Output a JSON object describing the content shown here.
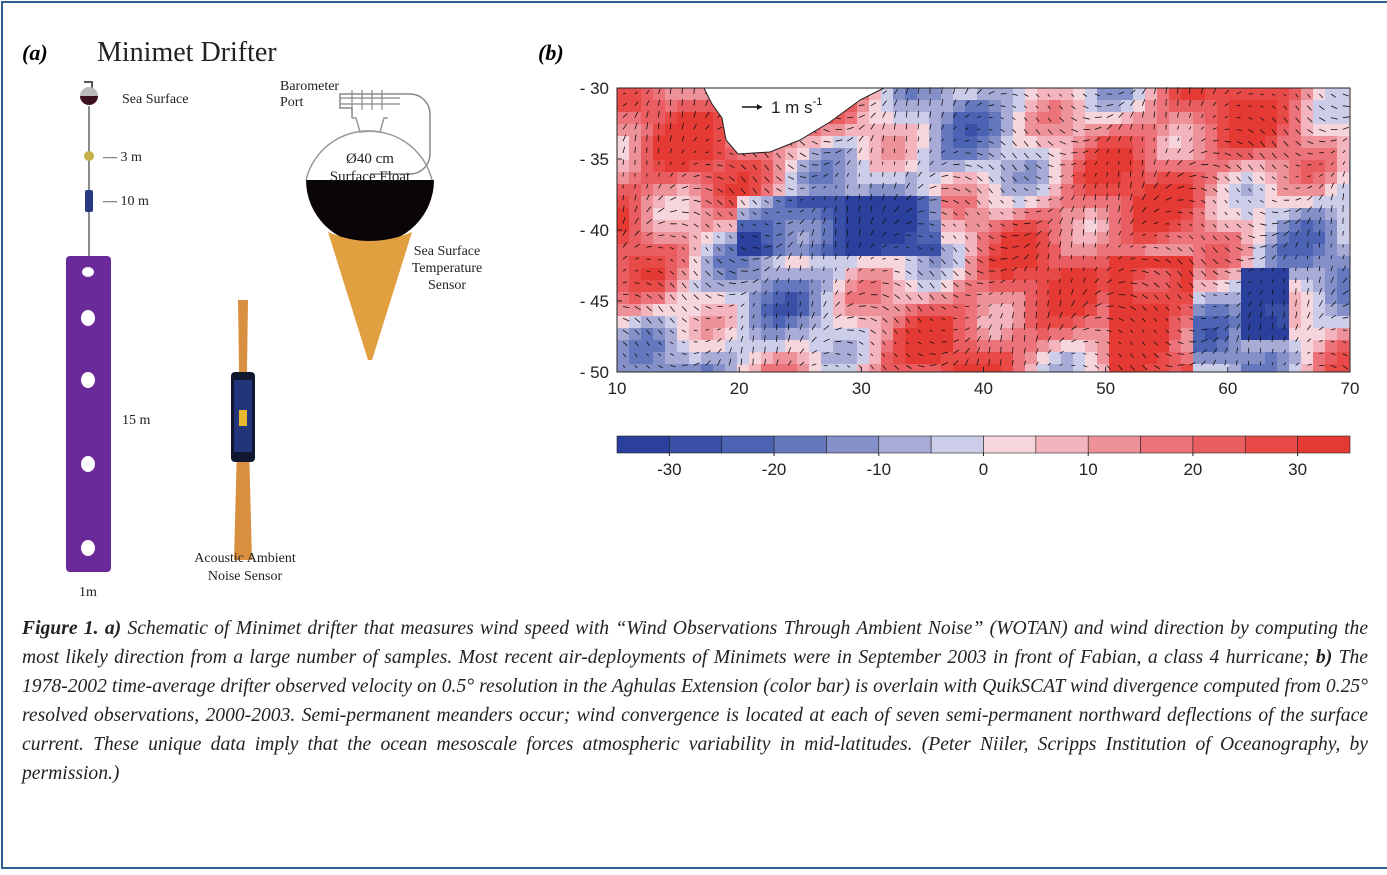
{
  "panel_a": {
    "label": "(a)",
    "title": "Minimet Drifter",
    "sea_surface": "Sea Surface",
    "depth_3": "— 3 m",
    "depth_10": "— 10 m",
    "length_15": "15 m",
    "width_1": "1m",
    "barometer": [
      "Barometer",
      "Port"
    ],
    "float": [
      "Ø40 cm",
      "Surface Float"
    ],
    "sst_sensor": [
      "Sea Surface",
      "Temperature",
      "Sensor"
    ],
    "noise_sensor": [
      "Acoustic Ambient",
      "Noise Sensor"
    ]
  },
  "panel_b": {
    "label": "(b)",
    "arrow_scale": {
      "text": "1 m s",
      "sup": "-1"
    },
    "xlim": [
      10,
      70
    ],
    "xticks": [
      10,
      20,
      30,
      40,
      50,
      60,
      70
    ],
    "ylim": [
      -50,
      -30
    ],
    "yticks": [
      {
        "value": -30,
        "label": "- 30"
      },
      {
        "value": -35,
        "label": "- 35"
      },
      {
        "value": -40,
        "label": "- 40"
      },
      {
        "value": -45,
        "label": "- 45"
      },
      {
        "value": -50,
        "label": "- 50"
      }
    ],
    "colorbar": {
      "lim": [
        -35,
        35
      ],
      "ticks": [
        -30,
        -20,
        -10,
        0,
        10,
        20,
        30
      ],
      "colors": [
        "#2b3f9c",
        "#3a4fa6",
        "#4c62b2",
        "#6577bd",
        "#8590c8",
        "#a7abd6",
        "#cccde9",
        "#f6d6dc",
        "#f3b4bd",
        "#ee9299",
        "#eb7379",
        "#e95c5f",
        "#e84a48",
        "#e43a33"
      ]
    }
  },
  "caption": {
    "figure": "Figure 1.",
    "a_label": "a)",
    "a_text": "Schematic of Minimet drifter that measures wind speed with “Wind Observations Through Ambient Noise” (WOTAN) and wind direction by computing the most likely direction from a large number of samples. Most recent air-deployments of Minimets were in September 2003 in front of Fabian, a class 4 hurricane;",
    "b_label": "b)",
    "b_text": "The 1978-2002 time-average drifter observed velocity on 0.5° resolution in the Aghulas Extension (color bar) is overlain with QuikSCAT wind divergence computed from 0.25° resolved observations, 2000-2003. Semi-permanent meanders occur; wind convergence is located at each of seven semi-permanent northward deflections of the surface current. These unique data imply that the ocean mesoscale forces atmospheric variability in mid-latitudes. (Peter Niiler, Scripps Institution of Oceanography, by permission.)"
  }
}
